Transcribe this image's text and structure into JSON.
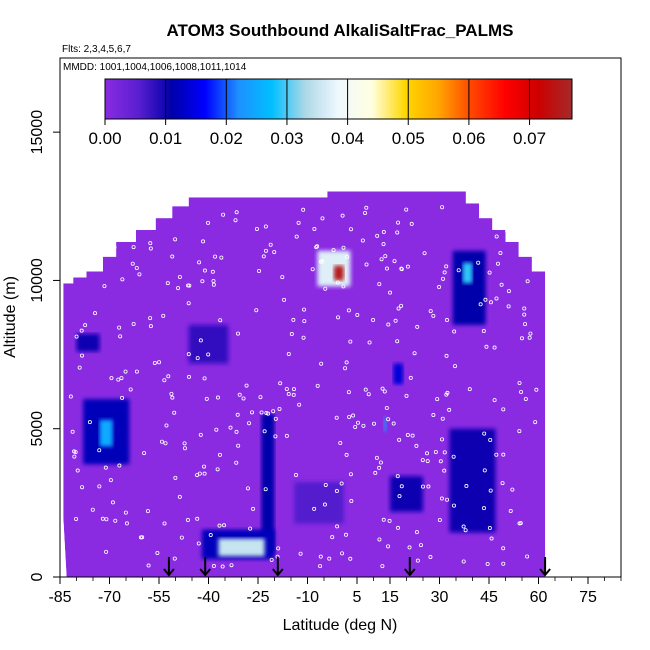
{
  "chart_data": {
    "type": "heatmap",
    "title": "ATOM3 Southbound AlkaliSaltFrac_PALMS",
    "flights_note": "Flts: 2,3,4,5,6,7",
    "dates_note": "MMDD: 1001,1004,1006,1008,1011,1014",
    "xlabel": "Latitude (deg N)",
    "ylabel": "Altitude (m)",
    "xlim": [
      -85,
      85
    ],
    "ylim": [
      0,
      17500
    ],
    "x_ticks": [
      "-85",
      "-70",
      "-55",
      "-40",
      "-25",
      "-10",
      "5",
      "15",
      "30",
      "45",
      "60",
      "75"
    ],
    "y_ticks": [
      "0",
      "5000",
      "10000",
      "15000"
    ],
    "colorbar": {
      "ticks": [
        "0.00",
        "0.01",
        "0.02",
        "0.03",
        "0.04",
        "0.05",
        "0.06",
        "0.07"
      ],
      "range": [
        0,
        0.077
      ],
      "colors": [
        "#8a2be2",
        "#5a1fd0",
        "#0000aa",
        "#0000ff",
        "#1e90ff",
        "#00bfff",
        "#add8e6",
        "#f0f8ff",
        "#ffffe0",
        "#ffd700",
        "#ffa500",
        "#ff4500",
        "#ff0000",
        "#cc0000",
        "#a52a2a"
      ]
    },
    "background_value": 0.0,
    "max_value": 0.075,
    "arrow_latitudes": [
      -52,
      -41,
      -19,
      21,
      62
    ],
    "coverage_envelope": [
      {
        "lat": -84,
        "alt_max": 9900
      },
      {
        "lat": -81,
        "alt_max": 10100
      },
      {
        "lat": -77,
        "alt_max": 10300
      },
      {
        "lat": -72,
        "alt_max": 10800
      },
      {
        "lat": -68,
        "alt_max": 11300
      },
      {
        "lat": -62,
        "alt_max": 11700
      },
      {
        "lat": -56,
        "alt_max": 12100
      },
      {
        "lat": -51,
        "alt_max": 12500
      },
      {
        "lat": -46,
        "alt_max": 12800
      },
      {
        "lat": -5,
        "alt_max": 12800
      },
      {
        "lat": -4,
        "alt_max": 13000
      },
      {
        "lat": 37,
        "alt_max": 13000
      },
      {
        "lat": 38,
        "alt_max": 12600
      },
      {
        "lat": 42,
        "alt_max": 12100
      },
      {
        "lat": 46,
        "alt_max": 11700
      },
      {
        "lat": 50,
        "alt_max": 11300
      },
      {
        "lat": 54,
        "alt_max": 10800
      },
      {
        "lat": 58,
        "alt_max": 10300
      },
      {
        "lat": 62,
        "alt_max": 9900
      }
    ],
    "features": [
      {
        "lat": [
          -7,
          3
        ],
        "alt": [
          9800,
          11000
        ],
        "value": 0.037
      },
      {
        "lat": [
          -2,
          1
        ],
        "alt": [
          10000,
          10500
        ],
        "value": 0.075
      },
      {
        "lat": [
          -37,
          -23
        ],
        "alt": [
          700,
          1300
        ],
        "value": 0.035
      },
      {
        "lat": [
          -42,
          -20
        ],
        "alt": [
          600,
          1600
        ],
        "value": 0.012
      },
      {
        "lat": [
          -73,
          -69
        ],
        "alt": [
          4400,
          5300
        ],
        "value": 0.025
      },
      {
        "lat": [
          -78,
          -64
        ],
        "alt": [
          3800,
          6000
        ],
        "value": 0.012
      },
      {
        "lat": [
          37,
          40
        ],
        "alt": [
          9900,
          10600
        ],
        "value": 0.029
      },
      {
        "lat": [
          34,
          44
        ],
        "alt": [
          8500,
          11000
        ],
        "value": 0.011
      },
      {
        "lat": [
          13,
          14
        ],
        "alt": [
          4900,
          5400
        ],
        "value": 0.022
      },
      {
        "lat": [
          16,
          19
        ],
        "alt": [
          6500,
          7200
        ],
        "value": 0.014
      },
      {
        "lat": [
          -24,
          -20
        ],
        "alt": [
          800,
          5500
        ],
        "value": 0.011
      },
      {
        "lat": [
          33,
          47
        ],
        "alt": [
          1500,
          5000
        ],
        "value": 0.01
      },
      {
        "lat": [
          -80,
          -73
        ],
        "alt": [
          7600,
          8200
        ],
        "value": 0.01
      },
      {
        "lat": [
          -46,
          -34
        ],
        "alt": [
          7200,
          8500
        ],
        "value": 0.008
      },
      {
        "lat": [
          -14,
          1
        ],
        "alt": [
          1800,
          3200
        ],
        "value": 0.006
      },
      {
        "lat": [
          15,
          25
        ],
        "alt": [
          2200,
          3400
        ],
        "value": 0.01
      }
    ]
  }
}
